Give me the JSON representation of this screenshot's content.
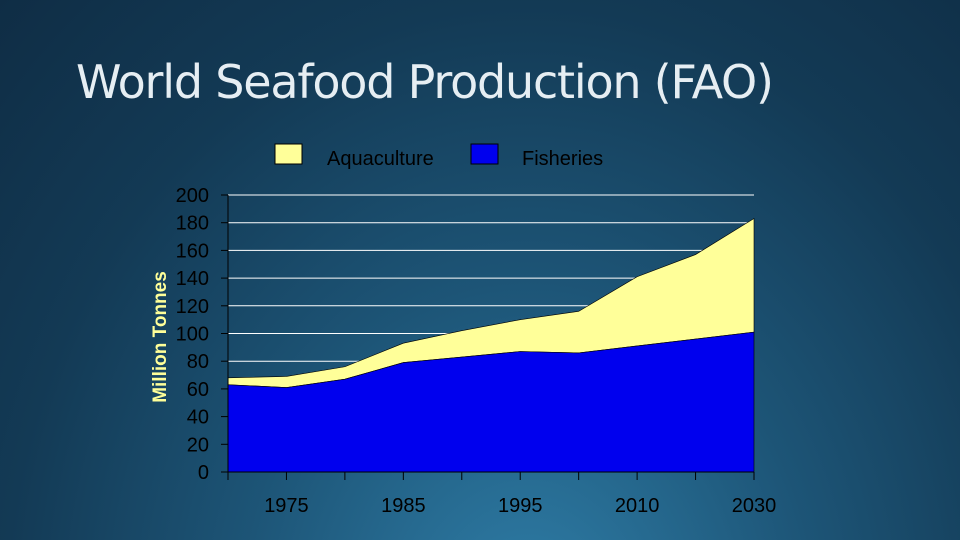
{
  "slide": {
    "title": "World Seafood Production (FAO)"
  },
  "colors": {
    "aquaculture": "#ffff99",
    "fisheries": "#0000ee",
    "axis": "#000000",
    "gridline": "#ffffff"
  },
  "chart_data": {
    "type": "area",
    "stacked": true,
    "title": "",
    "xlabel": "",
    "ylabel": "Million Tonnes",
    "ylim": [
      0,
      200
    ],
    "yticks": [
      0,
      20,
      40,
      60,
      80,
      100,
      120,
      140,
      160,
      180,
      200
    ],
    "x_tick_labels": [
      "1975",
      "1985",
      "1995",
      "2010",
      "2030"
    ],
    "grid": true,
    "legend": "top-center",
    "points": [
      "p0",
      "p1",
      "p2",
      "p3",
      "p4",
      "p5",
      "p6",
      "p7",
      "p8",
      "p9"
    ],
    "series": [
      {
        "name": "Fisheries",
        "color": "#0000ee",
        "values": [
          63,
          61,
          67,
          79,
          83,
          87,
          86,
          91,
          96,
          101
        ]
      },
      {
        "name": "Aquaculture",
        "color": "#ffff99",
        "values": [
          5,
          8,
          9,
          14,
          19,
          23,
          30,
          50,
          61,
          82
        ]
      }
    ]
  }
}
